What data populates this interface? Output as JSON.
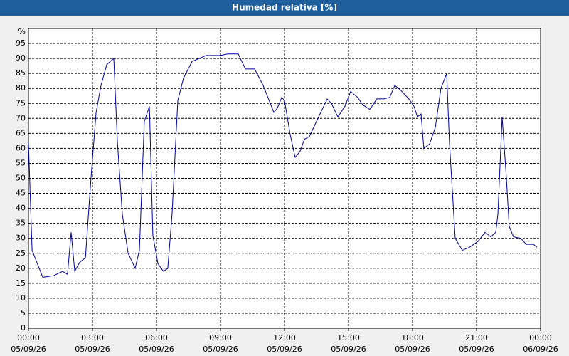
{
  "chart_data": {
    "type": "line",
    "title": "Humedad relativa [%]",
    "ylabel": "%",
    "x": [
      0,
      0.17,
      0.67,
      1.17,
      1.6,
      1.83,
      2.0,
      2.17,
      2.4,
      2.67,
      2.93,
      3.17,
      3.4,
      3.67,
      4.0,
      4.17,
      4.4,
      4.67,
      5.0,
      5.2,
      5.43,
      5.67,
      5.83,
      6.07,
      6.33,
      6.53,
      6.73,
      7.0,
      7.27,
      7.67,
      8.33,
      9.0,
      9.33,
      9.83,
      10.17,
      10.6,
      11.0,
      11.5,
      11.67,
      11.87,
      12.0,
      12.27,
      12.5,
      12.73,
      12.93,
      13.17,
      13.5,
      14.0,
      14.2,
      14.5,
      14.83,
      15.1,
      15.43,
      15.67,
      16.0,
      16.33,
      16.67,
      16.93,
      17.17,
      17.43,
      17.83,
      18.07,
      18.23,
      18.4,
      18.53,
      18.8,
      19.07,
      19.33,
      19.6,
      19.73,
      20.0,
      20.33,
      20.67,
      21.07,
      21.4,
      21.67,
      21.9,
      22.0,
      22.2,
      22.4,
      22.53,
      22.73,
      23.07,
      23.33,
      23.67,
      23.83
    ],
    "series": [
      {
        "name": "Humedad relativa",
        "color": "#0000a0",
        "values": [
          62,
          26,
          17,
          17.5,
          19,
          18,
          32,
          19,
          22,
          23.5,
          50,
          72,
          81,
          88,
          90,
          62,
          38,
          25,
          20,
          26,
          69,
          74,
          31,
          21.5,
          19,
          20,
          38,
          76,
          83.5,
          89,
          91,
          91,
          91.5,
          91.5,
          86.5,
          86.5,
          81,
          72,
          73.5,
          77,
          76,
          64.5,
          57,
          59,
          63,
          64,
          69,
          76.5,
          75,
          70.5,
          74,
          79,
          77,
          74.5,
          73,
          76.5,
          76.5,
          77,
          81,
          79.5,
          76.5,
          74,
          70.5,
          71.5,
          60,
          61.5,
          67,
          80,
          85,
          62,
          30,
          26,
          27,
          29,
          32,
          30.5,
          32,
          38,
          70.5,
          50,
          34,
          30.5,
          30,
          28,
          28,
          27
        ]
      }
    ],
    "xlim": [
      0,
      24
    ],
    "xticks": [
      {
        "value": 0,
        "label": "00:00"
      },
      {
        "value": 3,
        "label": "03:00"
      },
      {
        "value": 6,
        "label": "06:00"
      },
      {
        "value": 9,
        "label": "09:00"
      },
      {
        "value": 12,
        "label": "12:00"
      },
      {
        "value": 15,
        "label": "15:00"
      },
      {
        "value": 18,
        "label": "18:00"
      },
      {
        "value": 21,
        "label": "21:00"
      },
      {
        "value": 24,
        "label": "00:00"
      }
    ],
    "xtick_dates": [
      "05/09/26",
      "05/09/26",
      "05/09/26",
      "05/09/26",
      "05/09/26",
      "05/09/26",
      "05/09/26",
      "05/09/26",
      "06/09/26"
    ],
    "ylim": [
      0,
      100
    ],
    "yticks": [
      0,
      5,
      10,
      15,
      20,
      25,
      30,
      35,
      40,
      45,
      50,
      55,
      60,
      65,
      70,
      75,
      80,
      85,
      90,
      95
    ],
    "grid": true
  }
}
